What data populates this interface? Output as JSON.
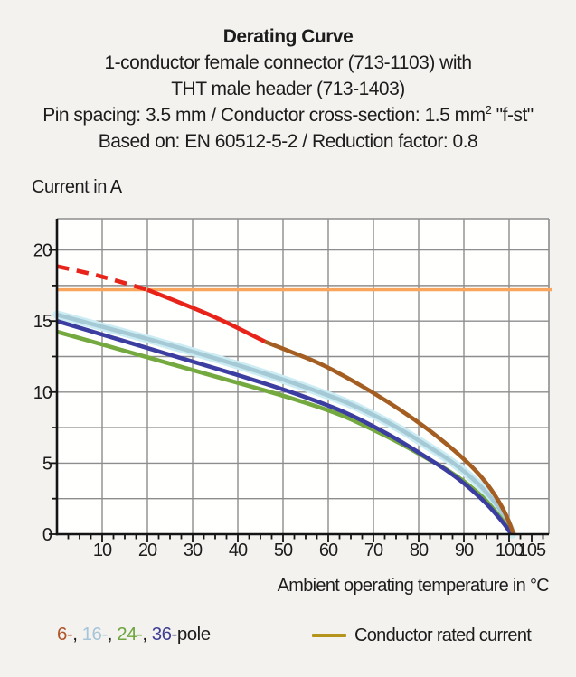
{
  "header": {
    "heading": "Derating Curve",
    "line2": "1-conductor female connector (713-1103) with",
    "line3": "THT male header (713-1403)",
    "pin_line": {
      "pre": "Pin spacing: 3.5 mm / Conductor cross-section: 1.5 mm",
      "sup": "2",
      "post": " \"f-st\""
    },
    "line5": "Based on: EN 60512-5-2 / Reduction factor: 0.8"
  },
  "y_axis_title": "Current in A",
  "x_axis_label": "Ambient operating temperature in °C",
  "legend": {
    "pole_segments": [
      {
        "name": "pole-6",
        "text": "6-",
        "color": "#b0552a"
      },
      {
        "name": "separator",
        "text": ", ",
        "color": "#1c1c1c"
      },
      {
        "name": "pole-16",
        "text": "16-",
        "color": "#a6c5d8"
      },
      {
        "name": "separator",
        "text": ", ",
        "color": "#1c1c1c"
      },
      {
        "name": "pole-24",
        "text": "24-",
        "color": "#6fa53e"
      },
      {
        "name": "separator",
        "text": ", ",
        "color": "#1c1c1c"
      },
      {
        "name": "pole-36",
        "text": "36-",
        "color": "#3f3f94"
      },
      {
        "name": "pole-word",
        "text": "pole",
        "color": "#1c1c1c"
      }
    ],
    "rated_label": "Conductor rated current",
    "rated_swatch_color": "#b5941c"
  },
  "chart_data": {
    "type": "line",
    "title": "Derating Curve",
    "xlabel": "Ambient operating temperature in °C",
    "ylabel": "Current in A",
    "xlim": [
      0,
      108.8
    ],
    "ylim": [
      0,
      22.2
    ],
    "grid": {
      "x_lines": [
        10,
        20,
        30,
        40,
        50,
        60,
        70,
        80,
        90,
        100
      ],
      "y_lines": [
        2.5,
        5,
        7.5,
        10,
        12.5,
        15,
        17.5,
        20
      ]
    },
    "x_ticks": {
      "major": [
        10,
        20,
        30,
        40,
        50,
        60,
        70,
        80,
        90,
        100,
        105
      ],
      "labels": [
        "10",
        "20",
        "30",
        "40",
        "50",
        "60",
        "70",
        "80",
        "90",
        "100",
        "105"
      ],
      "minor": [
        2.5,
        5,
        7.5,
        12.5,
        15,
        17.5,
        22.5,
        25,
        27.5,
        32.5,
        35,
        37.5,
        42.5,
        45,
        47.5,
        52.5,
        55,
        57.5,
        62.5,
        65,
        67.5,
        72.5,
        75,
        77.5,
        82.5,
        85,
        87.5,
        92.5,
        95,
        97.5,
        102.5,
        107.5
      ]
    },
    "y_ticks": {
      "major": [
        0,
        5,
        10,
        15,
        20
      ],
      "labels": [
        "0",
        "5",
        "10",
        "15",
        "20"
      ],
      "minor": [
        2.5,
        7.5,
        12.5,
        17.5
      ]
    },
    "colors": {
      "plot_bg": "#fffffe",
      "grid": "#8d8d8d",
      "axis": "#141414"
    },
    "rated_current_A": 17.2,
    "series": [
      {
        "id": "conductor-rated-current",
        "label": "Conductor rated current",
        "color": "#f9a55b",
        "width": 3.4,
        "points": [
          [
            0,
            17.2
          ],
          [
            109.6,
            17.2
          ]
        ]
      },
      {
        "id": "16-pole",
        "label": "16-pole",
        "color": "#a6c9d6",
        "width": 4.6,
        "halo": "#ccecf4",
        "halo_width": 9.5,
        "points": [
          [
            0,
            15.45
          ],
          [
            10,
            14.6
          ],
          [
            20,
            13.75
          ],
          [
            30,
            12.85
          ],
          [
            40,
            11.9
          ],
          [
            50,
            10.9
          ],
          [
            58,
            10.0
          ],
          [
            64,
            9.3
          ],
          [
            70,
            8.4
          ],
          [
            76,
            7.4
          ],
          [
            82,
            6.2
          ],
          [
            86,
            5.4
          ],
          [
            90,
            4.45
          ],
          [
            93,
            3.6
          ],
          [
            95,
            2.95
          ],
          [
            97,
            2.2
          ],
          [
            99,
            1.25
          ],
          [
            100.7,
            0
          ]
        ]
      },
      {
        "id": "24-pole",
        "label": "24-pole",
        "color": "#73a93f",
        "width": 4.6,
        "points": [
          [
            0,
            14.25
          ],
          [
            10,
            13.35
          ],
          [
            20,
            12.45
          ],
          [
            30,
            11.55
          ],
          [
            40,
            10.65
          ],
          [
            50,
            9.75
          ],
          [
            58,
            8.95
          ],
          [
            64,
            8.25
          ],
          [
            70,
            7.35
          ],
          [
            76,
            6.4
          ],
          [
            82,
            5.3
          ],
          [
            86,
            4.6
          ],
          [
            90,
            3.75
          ],
          [
            93,
            2.95
          ],
          [
            95,
            2.35
          ],
          [
            97,
            1.6
          ],
          [
            99,
            0.8
          ],
          [
            100.6,
            0
          ]
        ]
      },
      {
        "id": "36-pole",
        "label": "36-pole",
        "color": "#3c3da0",
        "width": 4.6,
        "points": [
          [
            0,
            15.0
          ],
          [
            10,
            14.05
          ],
          [
            20,
            13.1
          ],
          [
            30,
            12.15
          ],
          [
            40,
            11.2
          ],
          [
            50,
            10.2
          ],
          [
            58,
            9.3
          ],
          [
            64,
            8.55
          ],
          [
            70,
            7.6
          ],
          [
            76,
            6.55
          ],
          [
            82,
            5.35
          ],
          [
            86,
            4.55
          ],
          [
            90,
            3.6
          ],
          [
            93,
            2.75
          ],
          [
            95,
            2.15
          ],
          [
            97,
            1.45
          ],
          [
            99,
            0.7
          ],
          [
            100.5,
            0
          ]
        ]
      },
      {
        "id": "6-pole",
        "label": "6-pole",
        "color": "#a55e22",
        "width": 4.6,
        "points": [
          [
            46,
            13.55
          ],
          [
            52,
            12.8
          ],
          [
            58,
            12.05
          ],
          [
            64,
            11.05
          ],
          [
            70,
            9.95
          ],
          [
            76,
            8.75
          ],
          [
            82,
            7.4
          ],
          [
            86,
            6.4
          ],
          [
            90,
            5.3
          ],
          [
            93,
            4.35
          ],
          [
            95,
            3.6
          ],
          [
            97,
            2.7
          ],
          [
            99,
            1.6
          ],
          [
            100.2,
            0.7
          ],
          [
            101,
            0
          ]
        ]
      },
      {
        "id": "6-pole-red-solid",
        "label": "6-pole (solid red segment)",
        "color": "#e8231a",
        "width": 4.6,
        "points": [
          [
            20,
            17.2
          ],
          [
            28,
            16.2
          ],
          [
            36,
            15.15
          ],
          [
            46,
            13.55
          ]
        ]
      },
      {
        "id": "6-pole-above-rated-dashed",
        "label": "6-pole (above conductor rated current, dashed)",
        "color": "#e8231a",
        "width": 4.6,
        "dash": "13.5 8.5",
        "points": [
          [
            0,
            18.85
          ],
          [
            6,
            18.45
          ],
          [
            12,
            17.95
          ],
          [
            20,
            17.2
          ]
        ]
      }
    ]
  }
}
